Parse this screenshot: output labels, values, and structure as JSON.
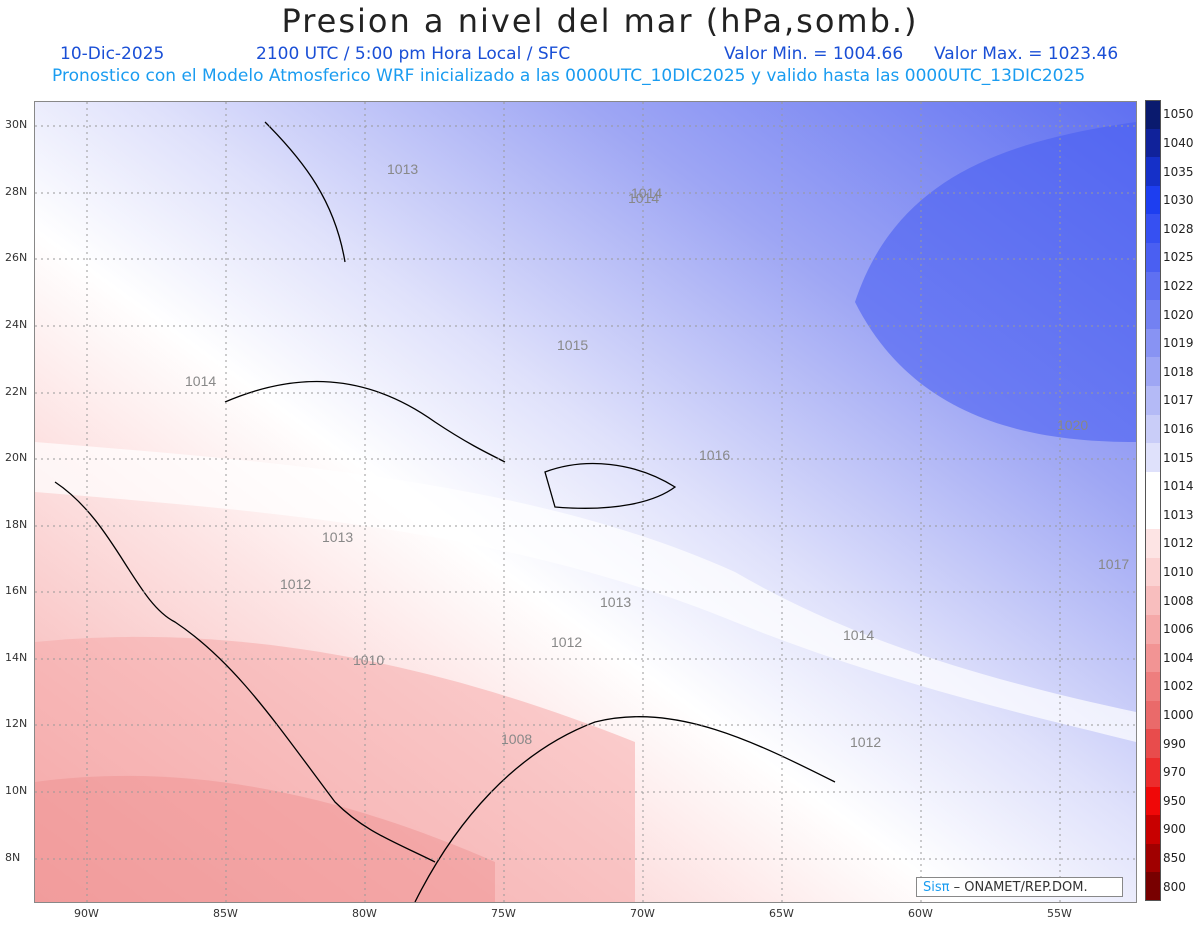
{
  "header": {
    "title": "Presion a nivel del mar (hPa,somb.)",
    "date": "10-Dic-2025",
    "time": "2100 UTC / 5:00 pm Hora Local / SFC",
    "min_label": "Valor Min. = 1004.66",
    "max_label": "Valor Max. = 1023.46",
    "forecast": "Pronostico con el Modelo Atmosferico WRF inicializado a las 0000UTC_10DIC2025 y valido hasta las  0000UTC_13DIC2025"
  },
  "lat_labels": [
    "30N",
    "28N",
    "26N",
    "24N",
    "22N",
    "20N",
    "18N",
    "16N",
    "14N",
    "12N",
    "10N",
    "8N"
  ],
  "lon_labels": [
    "90W",
    "85W",
    "80W",
    "75W",
    "70W",
    "65W",
    "60W",
    "55W"
  ],
  "contour_labels": [
    {
      "text": "1013"
    },
    {
      "text": "1014"
    },
    {
      "text": "1014"
    },
    {
      "text": "1015"
    },
    {
      "text": "1016"
    },
    {
      "text": "1020"
    },
    {
      "text": "1013"
    },
    {
      "text": "1012"
    },
    {
      "text": "1013"
    },
    {
      "text": "1012"
    },
    {
      "text": "1010"
    },
    {
      "text": "1014"
    },
    {
      "text": "1017"
    },
    {
      "text": "1008"
    },
    {
      "text": "1012"
    },
    {
      "text": "1014"
    }
  ],
  "colorbar": {
    "levels": [
      "1050",
      "1040",
      "1035",
      "1030",
      "1028",
      "1025",
      "1022",
      "1020",
      "1019",
      "1018",
      "1017",
      "1016",
      "1015",
      "1014",
      "1013",
      "1012",
      "1010",
      "1008",
      "1006",
      "1004",
      "1002",
      "1000",
      "990",
      "970",
      "950",
      "900",
      "850",
      "800"
    ],
    "colors": [
      "#0a1a6e",
      "#10229a",
      "#1530c8",
      "#1d3ef0",
      "#3650f2",
      "#4a5ff2",
      "#5f70f2",
      "#7381f2",
      "#8893f3",
      "#9ea6f4",
      "#b4baf6",
      "#c9cdf8",
      "#dfe1fb",
      "#ffffff",
      "#ffffff",
      "#fde4e4",
      "#fbd2d2",
      "#f8bebe",
      "#f5a9a9",
      "#f29494",
      "#ee7e7e",
      "#ea6a6a",
      "#e84c4c",
      "#ec2c2c",
      "#f00808",
      "#c80000",
      "#a00000",
      "#780000"
    ]
  },
  "logo": {
    "brand": "Sisπ",
    "text": "– ONAMET/REP.DOM."
  }
}
